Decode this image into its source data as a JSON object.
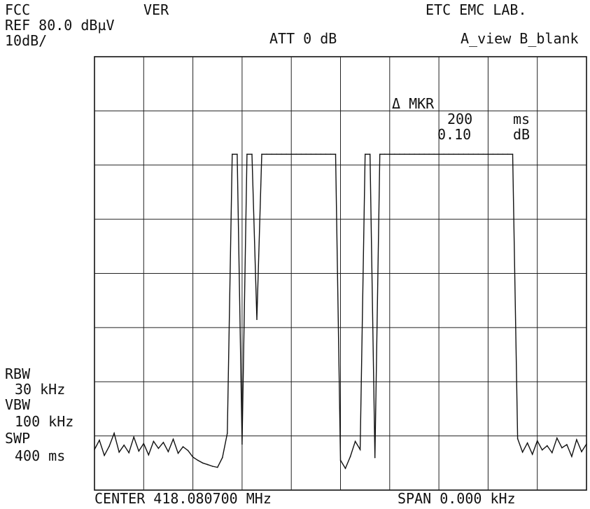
{
  "header": {
    "standard": "FCC",
    "polarization": "VER",
    "lab": "ETC EMC LAB.",
    "reference": "REF 80.0 dBµV",
    "attenuation": "ATT 0 dB",
    "trace_mode": "A_view B_blank",
    "scale": "10dB/"
  },
  "marker": {
    "label": "Δ MKR",
    "time_value": "200",
    "time_unit": "ms",
    "level_value": "0.10",
    "level_unit": "dB"
  },
  "settings": {
    "rbw_label": "RBW",
    "rbw_value": "30 kHz",
    "vbw_label": "VBW",
    "vbw_value": "100 kHz",
    "swp_label": "SWP",
    "swp_value": "400 ms"
  },
  "footer": {
    "center": "CENTER 418.080700 MHz",
    "span": "SPAN 0.000 kHz"
  },
  "chart_data": {
    "type": "line",
    "x_unit": "ms",
    "y_unit": "dBµV",
    "xlim": [
      0,
      400
    ],
    "ylim": [
      0,
      80
    ],
    "grid": true,
    "series": [
      {
        "x": [
          0,
          4,
          8,
          12,
          16,
          20,
          24,
          28,
          32,
          36,
          40,
          44,
          48,
          52,
          56,
          60,
          64,
          68,
          72,
          76,
          80,
          84,
          88,
          92,
          96,
          100,
          104,
          108,
          112,
          116,
          120,
          124,
          128,
          132,
          136,
          140,
          144,
          148,
          152,
          156,
          160,
          164,
          168,
          172,
          176,
          180,
          184,
          188,
          192,
          196,
          200,
          204,
          208,
          212,
          216,
          220,
          224,
          228,
          232,
          236,
          240,
          244,
          248,
          252,
          256,
          260,
          264,
          268,
          272,
          276,
          280,
          284,
          288,
          292,
          296,
          300,
          304,
          308,
          312,
          316,
          320,
          324,
          328,
          332,
          336,
          340,
          344,
          348,
          352,
          356,
          360,
          364,
          368,
          372,
          376,
          380,
          384,
          388,
          392,
          396,
          400
        ],
        "y": [
          7.5,
          9.2,
          6.4,
          8.1,
          10.5,
          7.0,
          8.3,
          6.9,
          9.8,
          7.2,
          8.6,
          6.5,
          9.0,
          7.7,
          8.8,
          7.1,
          9.4,
          6.8,
          8.0,
          7.3,
          6.1,
          5.5,
          5.0,
          4.7,
          4.4,
          4.2,
          6.0,
          10.5,
          62.0,
          62.0,
          8.5,
          62.0,
          62.0,
          31.5,
          62.0,
          62.0,
          62.0,
          62.0,
          62.0,
          62.0,
          62.0,
          62.0,
          62.0,
          62.0,
          62.0,
          62.0,
          62.0,
          62.0,
          62.0,
          62.0,
          5.5,
          4.0,
          6.2,
          9.0,
          7.5,
          62.0,
          62.0,
          6.0,
          62.0,
          62.0,
          62.0,
          62.0,
          62.0,
          62.0,
          62.0,
          62.0,
          62.0,
          62.0,
          62.0,
          62.0,
          62.0,
          62.0,
          62.0,
          62.0,
          62.0,
          62.0,
          62.0,
          62.0,
          62.0,
          62.0,
          62.0,
          62.0,
          62.0,
          62.0,
          62.0,
          62.0,
          9.5,
          7.0,
          8.7,
          6.6,
          9.1,
          7.4,
          8.2,
          6.9,
          9.6,
          7.8,
          8.4,
          6.2,
          9.3,
          7.1,
          8.5
        ]
      }
    ]
  }
}
